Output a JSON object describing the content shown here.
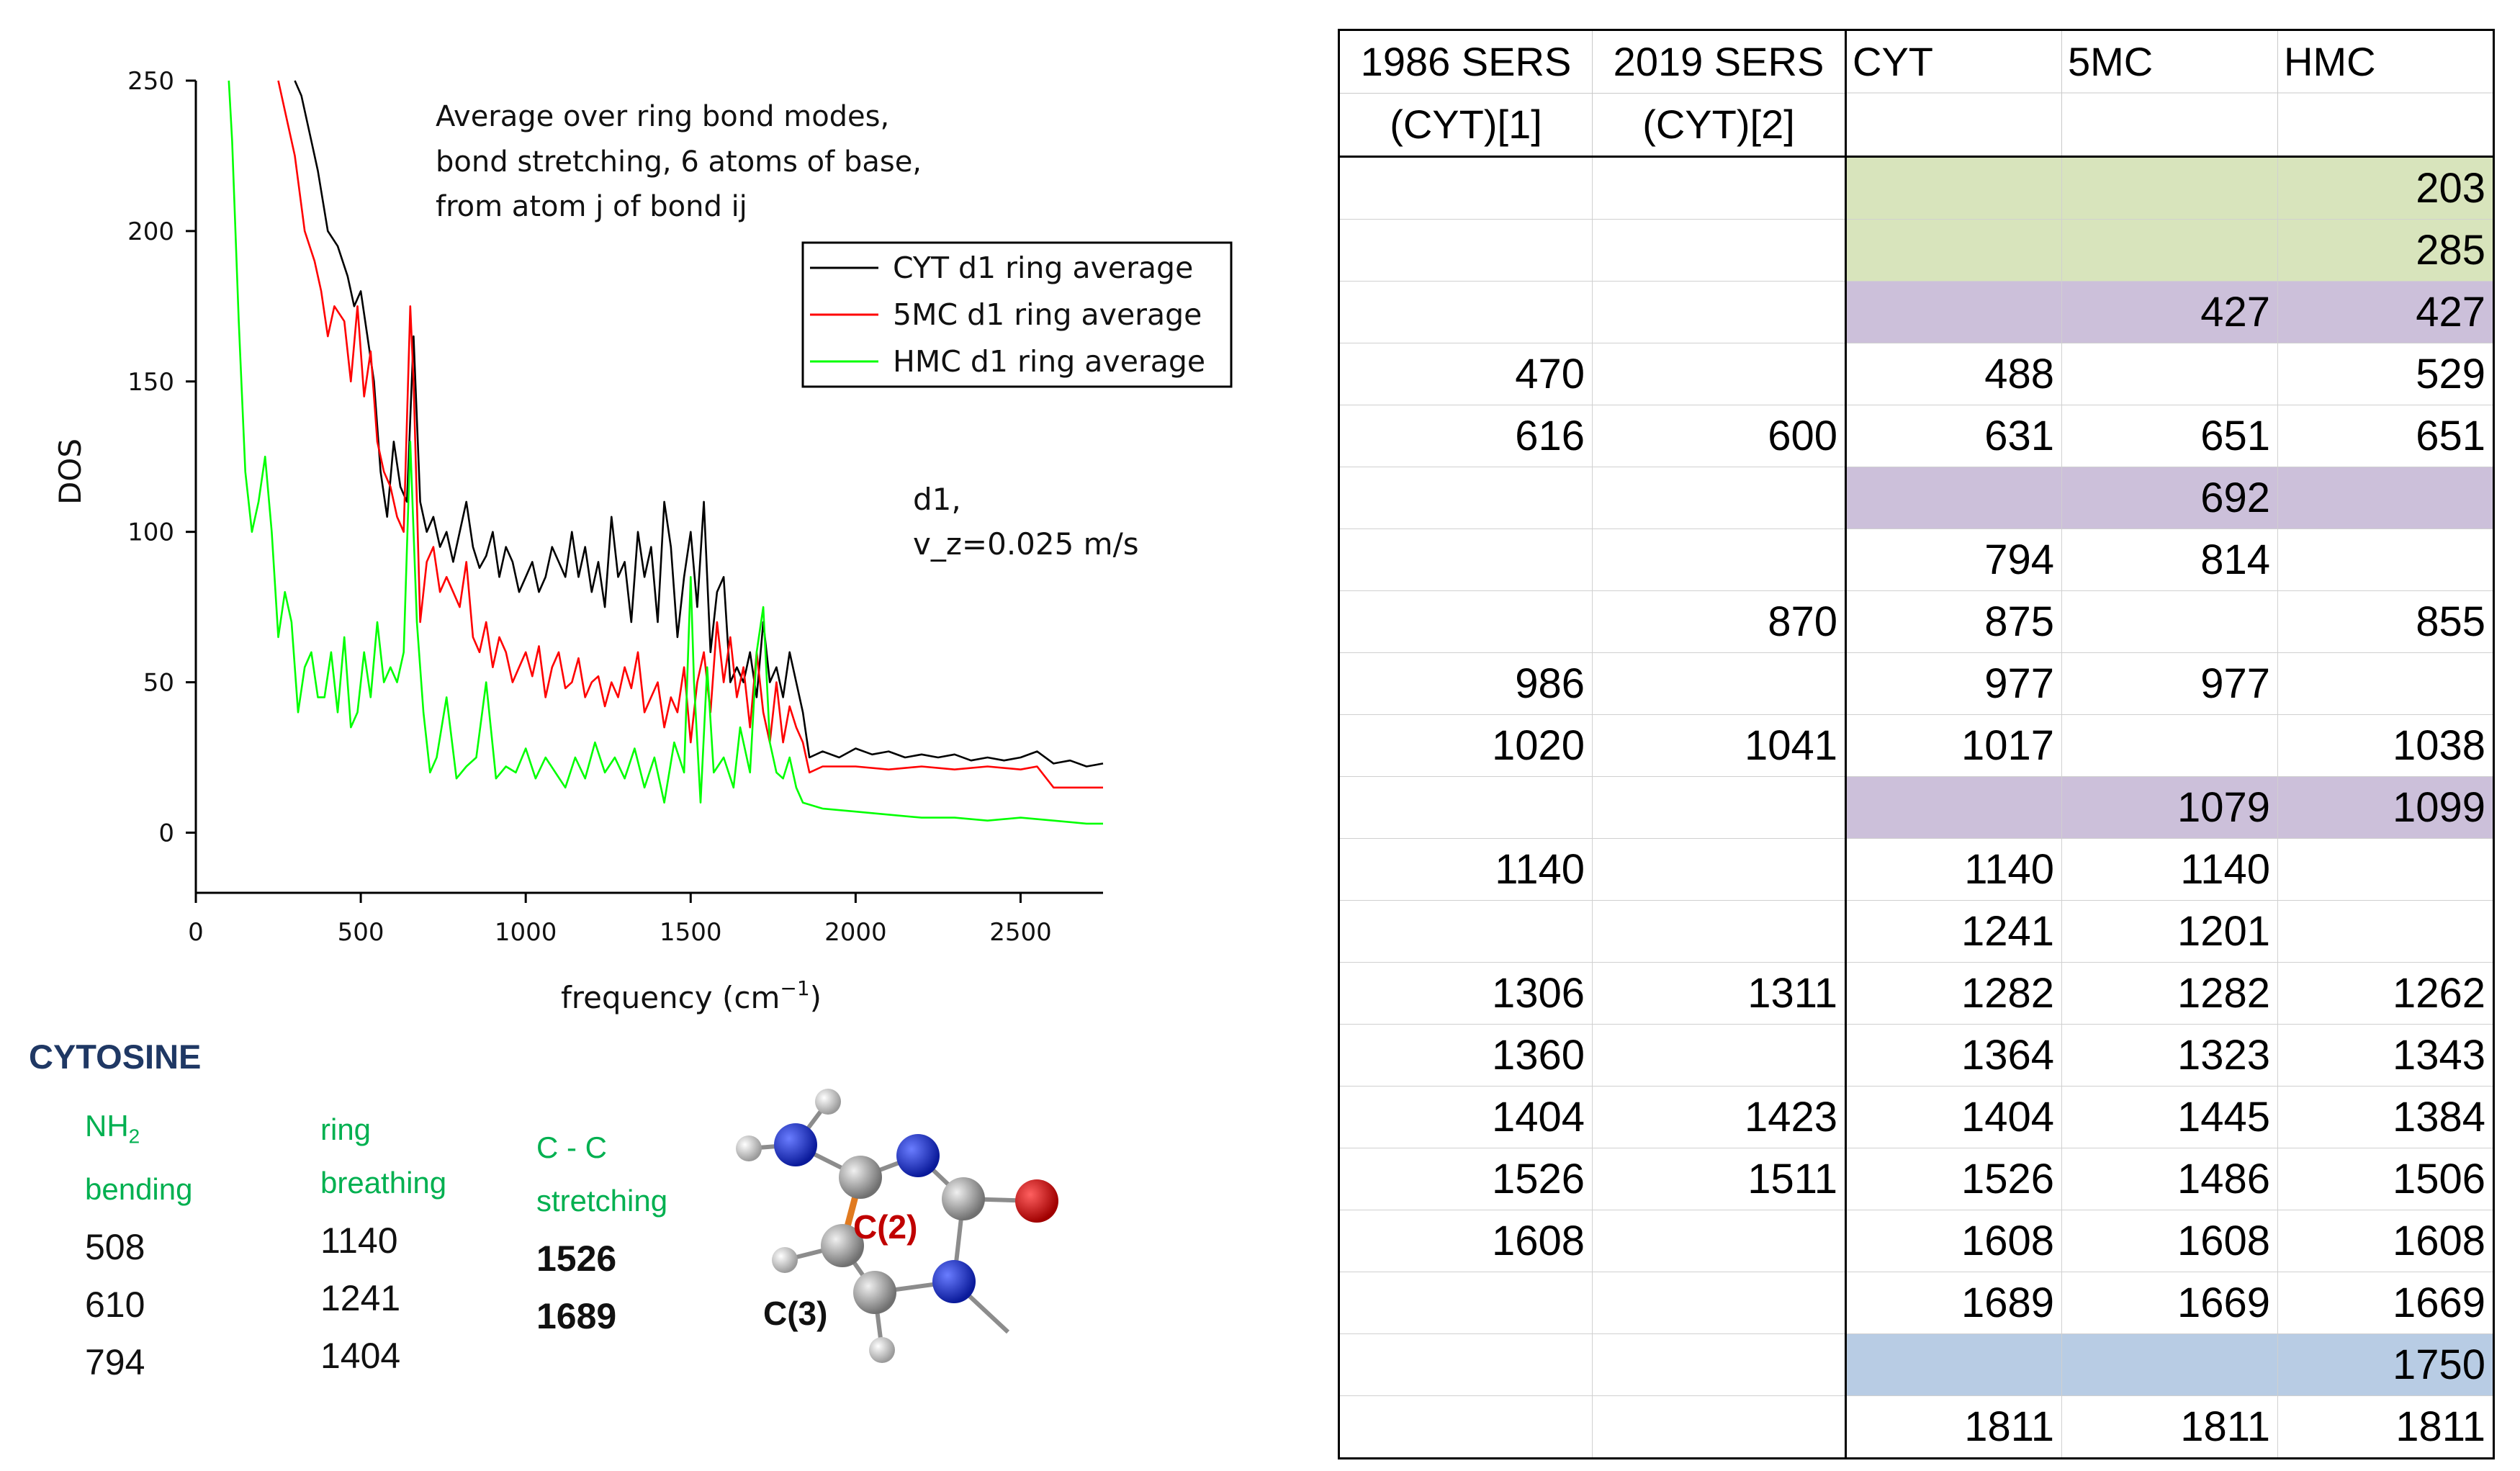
{
  "chart_data": {
    "type": "line",
    "xlabel_base": "frequency (cm",
    "xlabel_sup": "−1",
    "xlabel_end": ")",
    "ylabel": "DOS",
    "xlim": [
      0,
      2750
    ],
    "ylim": [
      -20,
      250
    ],
    "x_ticks": [
      0,
      500,
      1000,
      1500,
      2000,
      2500
    ],
    "y_ticks": [
      0,
      50,
      100,
      150,
      200,
      250
    ],
    "x_tick_labels": [
      "0",
      "500",
      "1000",
      "1500",
      "2000",
      "2500"
    ],
    "y_tick_labels": [
      "0",
      "50",
      "100",
      "150",
      "200",
      "250"
    ],
    "annotation_lines": [
      "Average over ring bond modes,",
      "bond stretching,  6 atoms of base,",
      "from atom j of bond ij"
    ],
    "condition_lines": [
      "d1,",
      "v_z=0.025 m/s"
    ],
    "legend_position": "top-right",
    "series": [
      {
        "name": "CYT d1 ring average",
        "color": "#000000",
        "x": [
          300,
          320,
          350,
          370,
          400,
          430,
          460,
          480,
          500,
          520,
          540,
          560,
          580,
          600,
          620,
          640,
          660,
          680,
          700,
          720,
          740,
          760,
          780,
          800,
          820,
          840,
          860,
          880,
          900,
          920,
          940,
          960,
          980,
          1000,
          1020,
          1040,
          1060,
          1080,
          1100,
          1120,
          1140,
          1160,
          1180,
          1200,
          1220,
          1240,
          1260,
          1280,
          1300,
          1320,
          1340,
          1360,
          1380,
          1400,
          1420,
          1440,
          1460,
          1480,
          1500,
          1520,
          1540,
          1560,
          1580,
          1600,
          1620,
          1640,
          1660,
          1680,
          1700,
          1720,
          1740,
          1760,
          1780,
          1800,
          1820,
          1840,
          1860,
          1900,
          1950,
          2000,
          2050,
          2100,
          2150,
          2200,
          2250,
          2300,
          2350,
          2400,
          2450,
          2500,
          2550,
          2600,
          2650,
          2700,
          2750
        ],
        "y": [
          250,
          245,
          230,
          220,
          200,
          195,
          185,
          175,
          180,
          165,
          150,
          120,
          105,
          130,
          115,
          110,
          165,
          110,
          100,
          105,
          95,
          100,
          90,
          100,
          110,
          95,
          88,
          92,
          100,
          85,
          95,
          90,
          80,
          85,
          90,
          80,
          85,
          95,
          90,
          85,
          100,
          85,
          95,
          80,
          90,
          75,
          105,
          85,
          90,
          70,
          100,
          85,
          95,
          70,
          110,
          95,
          65,
          85,
          100,
          75,
          110,
          60,
          80,
          85,
          50,
          55,
          50,
          60,
          45,
          70,
          50,
          55,
          45,
          60,
          50,
          40,
          25,
          27,
          25,
          28,
          26,
          27,
          25,
          26,
          25,
          26,
          24,
          25,
          24,
          25,
          27,
          23,
          24,
          22,
          23
        ]
      },
      {
        "name": "5MC d1 ring average",
        "color": "#ff0000",
        "x": [
          250,
          270,
          300,
          330,
          360,
          380,
          400,
          420,
          450,
          470,
          490,
          510,
          530,
          550,
          570,
          590,
          610,
          630,
          650,
          660,
          670,
          680,
          700,
          720,
          740,
          760,
          780,
          800,
          820,
          840,
          860,
          880,
          900,
          920,
          940,
          960,
          980,
          1000,
          1020,
          1040,
          1060,
          1080,
          1100,
          1120,
          1140,
          1160,
          1180,
          1200,
          1220,
          1240,
          1260,
          1280,
          1300,
          1320,
          1340,
          1360,
          1380,
          1400,
          1420,
          1440,
          1460,
          1480,
          1500,
          1520,
          1540,
          1560,
          1580,
          1600,
          1620,
          1640,
          1660,
          1680,
          1700,
          1720,
          1740,
          1760,
          1780,
          1800,
          1820,
          1840,
          1860,
          1900,
          2000,
          2100,
          2200,
          2300,
          2400,
          2500,
          2550,
          2600,
          2700,
          2750
        ],
        "y": [
          250,
          240,
          225,
          200,
          190,
          180,
          165,
          175,
          170,
          150,
          175,
          145,
          160,
          130,
          120,
          115,
          105,
          100,
          175,
          150,
          110,
          70,
          90,
          95,
          80,
          85,
          80,
          75,
          90,
          65,
          60,
          70,
          55,
          65,
          60,
          50,
          55,
          60,
          52,
          62,
          45,
          55,
          60,
          48,
          50,
          58,
          45,
          50,
          52,
          42,
          50,
          45,
          55,
          48,
          60,
          40,
          45,
          50,
          35,
          45,
          40,
          55,
          30,
          50,
          60,
          40,
          70,
          50,
          65,
          45,
          55,
          35,
          60,
          40,
          30,
          50,
          30,
          42,
          35,
          30,
          20,
          22,
          22,
          21,
          22,
          21,
          22,
          21,
          22,
          15,
          15,
          15
        ]
      },
      {
        "name": "HMC d1 ring average",
        "color": "#00ff00",
        "x": [
          100,
          110,
          130,
          150,
          170,
          190,
          210,
          230,
          250,
          270,
          290,
          310,
          330,
          350,
          370,
          390,
          410,
          430,
          450,
          470,
          490,
          510,
          530,
          550,
          570,
          590,
          610,
          630,
          650,
          660,
          670,
          690,
          710,
          730,
          760,
          790,
          820,
          850,
          880,
          910,
          940,
          970,
          1000,
          1030,
          1060,
          1090,
          1120,
          1150,
          1180,
          1210,
          1240,
          1270,
          1300,
          1330,
          1360,
          1390,
          1420,
          1450,
          1480,
          1500,
          1510,
          1530,
          1550,
          1570,
          1600,
          1630,
          1650,
          1680,
          1700,
          1720,
          1740,
          1760,
          1780,
          1800,
          1820,
          1840,
          1900,
          2000,
          2100,
          2200,
          2300,
          2400,
          2500,
          2600,
          2700,
          2750
        ],
        "y": [
          250,
          230,
          170,
          120,
          100,
          110,
          125,
          100,
          65,
          80,
          70,
          40,
          55,
          60,
          45,
          45,
          60,
          40,
          65,
          35,
          40,
          60,
          45,
          70,
          50,
          55,
          50,
          60,
          130,
          100,
          70,
          40,
          20,
          25,
          45,
          18,
          22,
          25,
          50,
          18,
          22,
          20,
          28,
          18,
          25,
          20,
          15,
          25,
          18,
          30,
          20,
          25,
          18,
          28,
          15,
          25,
          10,
          30,
          20,
          85,
          50,
          10,
          55,
          20,
          25,
          15,
          35,
          20,
          60,
          75,
          30,
          20,
          18,
          25,
          15,
          10,
          8,
          7,
          6,
          5,
          5,
          4,
          5,
          4,
          3,
          3
        ]
      }
    ]
  },
  "cytosine": {
    "title": "CYTOSINE",
    "nh2_label_main": "NH",
    "nh2_label_sub": "2",
    "nh2_label_2": "bending",
    "nh2_values": [
      "508",
      "610",
      "794"
    ],
    "ring_label_1": "ring",
    "ring_label_2": "breathing",
    "ring_values": [
      "1140",
      "1241",
      "1404"
    ],
    "cc_label_1": "C - C",
    "cc_label_2": "stretching",
    "cc_values": [
      "1526",
      "1689"
    ],
    "atom_c2": "C(2)",
    "atom_c3": "C(3)"
  },
  "table": {
    "headers": [
      {
        "l1": "1986 SERS",
        "l2": "(CYT)[1]"
      },
      {
        "l1": "2019 SERS",
        "l2": "(CYT)[2]"
      },
      {
        "l1": "CYT",
        "l2": ""
      },
      {
        "l1": "5MC",
        "l2": ""
      },
      {
        "l1": "HMC",
        "l2": ""
      }
    ],
    "rows": [
      {
        "hl": "green",
        "cells": [
          "",
          "",
          "",
          "",
          "203"
        ]
      },
      {
        "hl": "green",
        "cells": [
          "",
          "",
          "",
          "",
          "285"
        ]
      },
      {
        "hl": "purple",
        "cells": [
          "",
          "",
          "",
          "427",
          "427"
        ]
      },
      {
        "hl": "",
        "cells": [
          "470",
          "",
          "488",
          "",
          "529"
        ]
      },
      {
        "hl": "",
        "cells": [
          "616",
          "600",
          "631",
          "651",
          "651"
        ]
      },
      {
        "hl": "purple",
        "cells": [
          "",
          "",
          "",
          "692",
          ""
        ]
      },
      {
        "hl": "",
        "cells": [
          "",
          "",
          "794",
          "814",
          ""
        ]
      },
      {
        "hl": "",
        "cells": [
          "",
          "870",
          "875",
          "",
          "855"
        ]
      },
      {
        "hl": "",
        "cells": [
          "986",
          "",
          "977",
          "977",
          ""
        ]
      },
      {
        "hl": "",
        "cells": [
          "1020",
          "1041",
          "1017",
          "",
          "1038"
        ]
      },
      {
        "hl": "purple",
        "cells": [
          "",
          "",
          "",
          "1079",
          "1099"
        ]
      },
      {
        "hl": "",
        "cells": [
          "1140",
          "",
          "1140",
          "1140",
          ""
        ]
      },
      {
        "hl": "",
        "cells": [
          "",
          "",
          "1241",
          "1201",
          ""
        ]
      },
      {
        "hl": "",
        "cells": [
          "1306",
          "1311",
          "1282",
          "1282",
          "1262"
        ]
      },
      {
        "hl": "",
        "cells": [
          "1360",
          "",
          "1364",
          "1323",
          "1343"
        ]
      },
      {
        "hl": "",
        "cells": [
          "1404",
          "1423",
          "1404",
          "1445",
          "1384"
        ]
      },
      {
        "hl": "",
        "cells": [
          "1526",
          "1511",
          "1526",
          "1486",
          "1506"
        ]
      },
      {
        "hl": "",
        "cells": [
          "1608",
          "",
          "1608",
          "1608",
          "1608"
        ]
      },
      {
        "hl": "",
        "cells": [
          "",
          "",
          "1689",
          "1669",
          "1669"
        ]
      },
      {
        "hl": "blue",
        "cells": [
          "",
          "",
          "",
          "",
          "1750"
        ]
      },
      {
        "hl": "",
        "cells": [
          "",
          "",
          "1811",
          "1811",
          "1811"
        ]
      }
    ]
  }
}
